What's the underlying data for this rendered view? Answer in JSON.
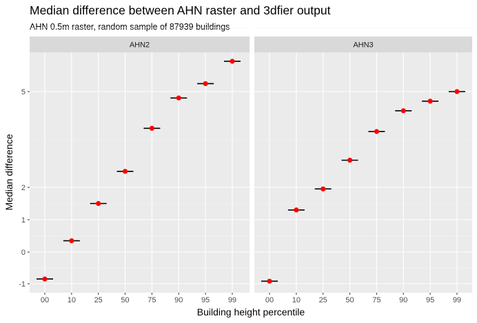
{
  "title": "Median difference between AHN raster and 3dfier output",
  "subtitle": "AHN 0.5m raster, random sample of 87939 buildings",
  "chart_data": {
    "type": "scatter",
    "title": "Median difference between AHN raster and 3dfier output",
    "subtitle": "AHN 0.5m raster, random sample of 87939 buildings",
    "xlabel": "Building height percentile",
    "ylabel": "Median difference",
    "categories": [
      "00",
      "10",
      "25",
      "50",
      "75",
      "90",
      "95",
      "99"
    ],
    "y_ticks": [
      -1,
      0,
      1,
      2,
      5
    ],
    "y_tick_labels": [
      "-1",
      "0",
      "1",
      "2",
      "5"
    ],
    "y_scale": "transformed (ticks unevenly spaced)",
    "ylim": [
      -1.25,
      8.4
    ],
    "grid": true,
    "point_color": "#ff0000",
    "panels": [
      {
        "strip": "AHN2",
        "values": [
          -0.85,
          0.35,
          1.5,
          2.5,
          3.85,
          4.8,
          5.25,
          5.95
        ]
      },
      {
        "strip": "AHN3",
        "values": [
          -0.92,
          1.3,
          1.95,
          2.85,
          3.75,
          4.4,
          4.7,
          5.0
        ]
      }
    ]
  }
}
